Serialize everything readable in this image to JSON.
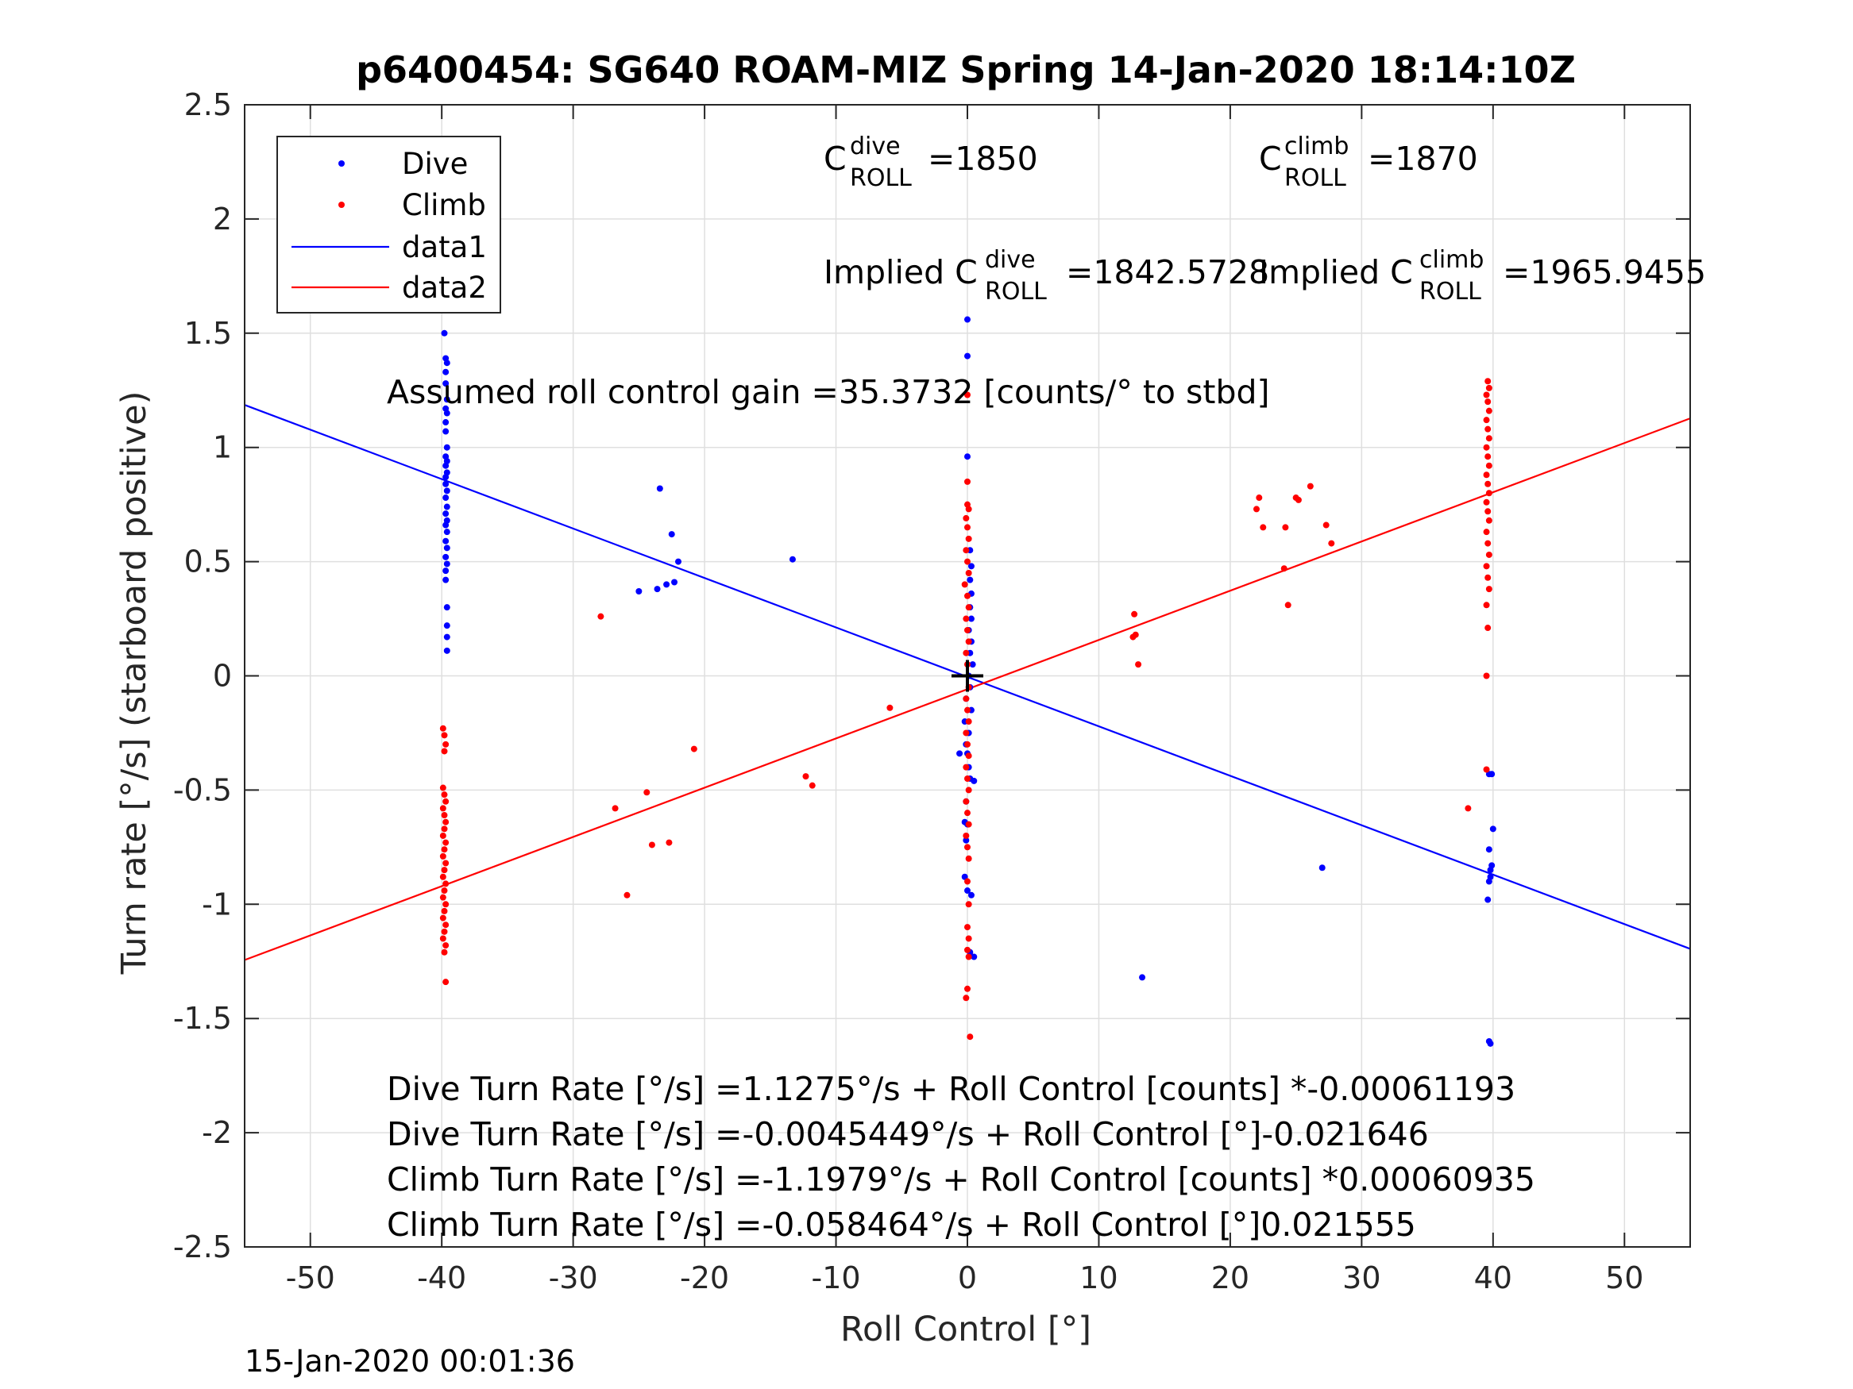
{
  "chart_data": {
    "type": "scatter",
    "title": "p6400454: SG640 ROAM-MIZ Spring 14-Jan-2020 18:14:10Z",
    "xlabel": "Roll Control [°]",
    "ylabel": "Turn rate [°/s] (starboard positive)",
    "xlim": [
      -55,
      55
    ],
    "ylim": [
      -2.5,
      2.5
    ],
    "xticks": [
      -50,
      -40,
      -30,
      -20,
      -10,
      0,
      10,
      20,
      30,
      40,
      50
    ],
    "yticks": [
      -2.5,
      -2,
      -1.5,
      -1,
      -0.5,
      0,
      0.5,
      1,
      1.5,
      2,
      2.5
    ],
    "ytick_labels": [
      "-2.5",
      "-2",
      "-1.5",
      "-1",
      "-0.5",
      "0",
      "0.5",
      "1",
      "1.5",
      "2",
      "2.5"
    ],
    "grid": true,
    "legend_position": "top-left",
    "series": [
      {
        "name": "Dive",
        "kind": "points",
        "color": "#0000ff",
        "points": [
          [
            -39.8,
            1.81
          ],
          [
            -39.8,
            1.71
          ],
          [
            -39.7,
            1.6
          ],
          [
            -39.8,
            1.5
          ],
          [
            -39.7,
            1.39
          ],
          [
            -39.6,
            1.37
          ],
          [
            -39.7,
            1.33
          ],
          [
            -39.7,
            1.28
          ],
          [
            -39.6,
            1.21
          ],
          [
            -39.7,
            1.17
          ],
          [
            -39.6,
            1.15
          ],
          [
            -39.7,
            1.11
          ],
          [
            -39.7,
            1.07
          ],
          [
            -39.6,
            1.0
          ],
          [
            -39.7,
            0.96
          ],
          [
            -39.6,
            0.94
          ],
          [
            -39.7,
            0.92
          ],
          [
            -39.6,
            0.89
          ],
          [
            -39.7,
            0.87
          ],
          [
            -39.7,
            0.84
          ],
          [
            -39.6,
            0.81
          ],
          [
            -39.7,
            0.78
          ],
          [
            -39.6,
            0.74
          ],
          [
            -39.7,
            0.71
          ],
          [
            -39.6,
            0.68
          ],
          [
            -39.7,
            0.66
          ],
          [
            -39.6,
            0.63
          ],
          [
            -39.7,
            0.59
          ],
          [
            -39.6,
            0.56
          ],
          [
            -39.7,
            0.52
          ],
          [
            -39.6,
            0.49
          ],
          [
            -39.7,
            0.46
          ],
          [
            -39.7,
            0.42
          ],
          [
            -39.6,
            0.3
          ],
          [
            -39.6,
            0.22
          ],
          [
            -39.6,
            0.17
          ],
          [
            -39.6,
            0.11
          ],
          [
            -23.4,
            0.82
          ],
          [
            -22.5,
            0.62
          ],
          [
            -22.0,
            0.5
          ],
          [
            -22.3,
            0.41
          ],
          [
            -22.9,
            0.4
          ],
          [
            -23.6,
            0.38
          ],
          [
            -25.0,
            0.37
          ],
          [
            -13.3,
            0.51
          ],
          [
            0.0,
            1.56
          ],
          [
            0.0,
            1.4
          ],
          [
            0.0,
            0.96
          ],
          [
            0.2,
            0.55
          ],
          [
            0.3,
            0.48
          ],
          [
            0.2,
            0.42
          ],
          [
            0.3,
            0.36
          ],
          [
            0.2,
            0.3
          ],
          [
            0.3,
            0.25
          ],
          [
            0.1,
            0.2
          ],
          [
            0.3,
            0.15
          ],
          [
            0.2,
            0.1
          ],
          [
            0.4,
            0.05
          ],
          [
            0.1,
            0.0
          ],
          [
            0.2,
            -0.05
          ],
          [
            -0.1,
            -0.1
          ],
          [
            0.3,
            -0.15
          ],
          [
            -0.2,
            -0.2
          ],
          [
            0.1,
            -0.25
          ],
          [
            -0.1,
            -0.3
          ],
          [
            0.0,
            -0.34
          ],
          [
            -0.6,
            -0.34
          ],
          [
            0.1,
            -0.4
          ],
          [
            0.2,
            -0.45
          ],
          [
            0.5,
            -0.46
          ],
          [
            -0.1,
            -0.55
          ],
          [
            0.0,
            -0.65
          ],
          [
            -0.2,
            -0.64
          ],
          [
            -0.1,
            -0.72
          ],
          [
            -0.2,
            -0.88
          ],
          [
            0.0,
            -0.94
          ],
          [
            0.3,
            -0.96
          ],
          [
            0.2,
            -1.21
          ],
          [
            0.5,
            -1.23
          ],
          [
            13.3,
            -1.32
          ],
          [
            27.0,
            -0.84
          ],
          [
            39.7,
            -0.43
          ],
          [
            39.9,
            -0.43
          ],
          [
            40.0,
            -0.67
          ],
          [
            39.7,
            -0.76
          ],
          [
            39.9,
            -0.83
          ],
          [
            39.8,
            -0.85
          ],
          [
            39.7,
            -0.9
          ],
          [
            39.8,
            -0.88
          ],
          [
            39.6,
            -0.98
          ],
          [
            39.7,
            -1.6
          ],
          [
            39.8,
            -1.61
          ]
        ]
      },
      {
        "name": "Climb",
        "kind": "points",
        "color": "#ff0000",
        "points": [
          [
            -39.9,
            -0.23
          ],
          [
            -39.8,
            -0.26
          ],
          [
            -39.7,
            -0.3
          ],
          [
            -39.8,
            -0.33
          ],
          [
            -39.9,
            -0.49
          ],
          [
            -39.8,
            -0.52
          ],
          [
            -39.7,
            -0.55
          ],
          [
            -39.9,
            -0.58
          ],
          [
            -39.8,
            -0.61
          ],
          [
            -39.7,
            -0.64
          ],
          [
            -39.8,
            -0.67
          ],
          [
            -39.9,
            -0.7
          ],
          [
            -39.7,
            -0.73
          ],
          [
            -39.8,
            -0.76
          ],
          [
            -39.9,
            -0.79
          ],
          [
            -39.7,
            -0.82
          ],
          [
            -39.8,
            -0.85
          ],
          [
            -39.9,
            -0.88
          ],
          [
            -39.7,
            -0.91
          ],
          [
            -39.8,
            -0.94
          ],
          [
            -39.9,
            -0.97
          ],
          [
            -39.7,
            -1.0
          ],
          [
            -39.8,
            -1.03
          ],
          [
            -39.9,
            -1.06
          ],
          [
            -39.7,
            -1.09
          ],
          [
            -39.8,
            -1.12
          ],
          [
            -39.9,
            -1.15
          ],
          [
            -39.7,
            -1.18
          ],
          [
            -39.8,
            -1.21
          ],
          [
            -39.7,
            -1.34
          ],
          [
            -27.9,
            0.26
          ],
          [
            -26.8,
            -0.58
          ],
          [
            -25.9,
            -0.96
          ],
          [
            -24.4,
            -0.51
          ],
          [
            -24.0,
            -0.74
          ],
          [
            -22.7,
            -0.73
          ],
          [
            -20.8,
            -0.32
          ],
          [
            -12.3,
            -0.44
          ],
          [
            -11.8,
            -0.48
          ],
          [
            -5.9,
            -0.14
          ],
          [
            0.0,
            1.23
          ],
          [
            0.0,
            0.85
          ],
          [
            0.0,
            0.75
          ],
          [
            0.1,
            0.73
          ],
          [
            -0.1,
            0.69
          ],
          [
            0.0,
            0.65
          ],
          [
            0.1,
            0.6
          ],
          [
            -0.1,
            0.55
          ],
          [
            0.0,
            0.5
          ],
          [
            0.1,
            0.45
          ],
          [
            -0.2,
            0.4
          ],
          [
            0.0,
            0.35
          ],
          [
            0.1,
            0.3
          ],
          [
            -0.1,
            0.25
          ],
          [
            0.0,
            0.2
          ],
          [
            0.1,
            0.15
          ],
          [
            -0.1,
            0.1
          ],
          [
            0.0,
            0.05
          ],
          [
            0.1,
            -0.05
          ],
          [
            -0.1,
            -0.1
          ],
          [
            0.0,
            -0.15
          ],
          [
            0.1,
            -0.2
          ],
          [
            -0.1,
            -0.25
          ],
          [
            0.0,
            -0.3
          ],
          [
            0.1,
            -0.35
          ],
          [
            -0.1,
            -0.4
          ],
          [
            0.0,
            -0.45
          ],
          [
            0.1,
            -0.5
          ],
          [
            -0.1,
            -0.55
          ],
          [
            0.0,
            -0.6
          ],
          [
            0.1,
            -0.65
          ],
          [
            -0.1,
            -0.7
          ],
          [
            0.0,
            -0.75
          ],
          [
            0.1,
            -0.8
          ],
          [
            0.0,
            -0.9
          ],
          [
            0.1,
            -1.0
          ],
          [
            0.0,
            -1.1
          ],
          [
            0.1,
            -1.15
          ],
          [
            0.0,
            -1.2
          ],
          [
            0.1,
            -1.23
          ],
          [
            0.0,
            -1.37
          ],
          [
            -0.1,
            -1.41
          ],
          [
            0.2,
            -1.58
          ],
          [
            12.7,
            0.27
          ],
          [
            12.6,
            0.17
          ],
          [
            12.8,
            0.18
          ],
          [
            13.0,
            0.05
          ],
          [
            22.2,
            0.78
          ],
          [
            22.0,
            0.73
          ],
          [
            22.5,
            0.65
          ],
          [
            24.2,
            0.65
          ],
          [
            24.1,
            0.47
          ],
          [
            24.4,
            0.31
          ],
          [
            25.0,
            0.78
          ],
          [
            25.2,
            0.77
          ],
          [
            26.1,
            0.83
          ],
          [
            27.3,
            0.66
          ],
          [
            27.7,
            0.58
          ],
          [
            39.6,
            1.29
          ],
          [
            39.7,
            1.26
          ],
          [
            39.5,
            1.23
          ],
          [
            39.6,
            1.2
          ],
          [
            39.7,
            1.16
          ],
          [
            39.5,
            1.12
          ],
          [
            39.6,
            1.08
          ],
          [
            39.7,
            1.04
          ],
          [
            39.5,
            1.0
          ],
          [
            39.6,
            0.96
          ],
          [
            39.7,
            0.92
          ],
          [
            39.5,
            0.88
          ],
          [
            39.6,
            0.84
          ],
          [
            39.7,
            0.8
          ],
          [
            39.5,
            0.76
          ],
          [
            39.6,
            0.72
          ],
          [
            39.7,
            0.68
          ],
          [
            39.5,
            0.63
          ],
          [
            39.6,
            0.58
          ],
          [
            39.7,
            0.53
          ],
          [
            39.5,
            0.48
          ],
          [
            39.6,
            0.43
          ],
          [
            39.7,
            0.38
          ],
          [
            39.5,
            0.31
          ],
          [
            39.6,
            0.21
          ],
          [
            39.5,
            0.0
          ],
          [
            39.5,
            -0.41
          ],
          [
            38.1,
            -0.58
          ]
        ]
      },
      {
        "name": "data1",
        "kind": "line",
        "color": "#0000ff",
        "x": [
          -55,
          55
        ],
        "y": [
          1.1859,
          -1.195
        ]
      },
      {
        "name": "data2",
        "kind": "line",
        "color": "#ff0000",
        "x": [
          -55,
          55
        ],
        "y": [
          -1.244,
          1.1271
        ]
      }
    ],
    "markers": [
      {
        "kind": "cross",
        "x": 0,
        "y": 0,
        "color": "#000000"
      }
    ]
  },
  "annotations": {
    "c_roll_dive": {
      "prefix": "C",
      "sup": "dive",
      "sub": "ROLL",
      "value": "=1850"
    },
    "c_roll_climb": {
      "prefix": "C",
      "sup": "climb",
      "sub": "ROLL",
      "value": "=1870"
    },
    "implied_dive": {
      "prefix": "Implied C",
      "sup": "dive",
      "sub": "ROLL",
      "value": "=1842.5728"
    },
    "implied_climb": {
      "prefix": "Implied C",
      "sup": "climb",
      "sub": "ROLL",
      "value": "=1965.9455"
    },
    "gain": "Assumed roll control gain =35.3732 [counts/° to stbd]",
    "fits": [
      "Dive Turn Rate [°/s] =1.1275°/s + Roll Control [counts] *-0.00061193",
      "Dive Turn Rate [°/s] =-0.0045449°/s + Roll Control [°]-0.021646",
      "Climb Turn Rate [°/s] =-1.1979°/s + Roll Control [counts] *0.00060935",
      "Climb Turn Rate [°/s] =-0.058464°/s + Roll Control [°]0.021555"
    ]
  },
  "timestamp": "15-Jan-2020 00:01:36"
}
